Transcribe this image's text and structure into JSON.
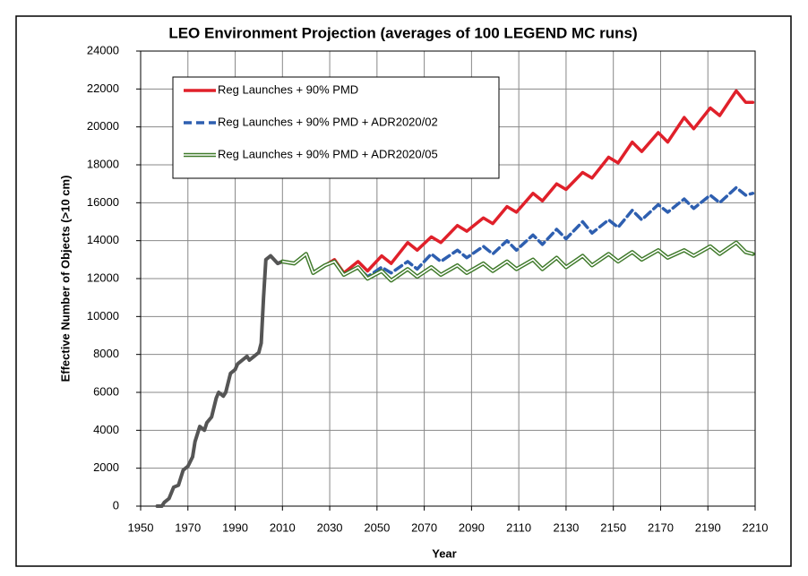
{
  "chart_data": {
    "type": "line",
    "title": "LEO Environment Projection (averages of 100 LEGEND MC runs)",
    "x_label": "Year",
    "y_label": "Effective Number of Objects (>10 cm)",
    "x": [
      1957,
      1959,
      1960,
      1962,
      1964,
      1966,
      1968,
      1970,
      1972,
      1973,
      1975,
      1977,
      1978,
      1980,
      1982,
      1983,
      1985,
      1986,
      1988,
      1990,
      1991,
      1993,
      1995,
      1996,
      1998,
      2000,
      2001,
      2002,
      2003,
      2005,
      2008,
      2010,
      2015,
      2020,
      2023,
      2028,
      2032,
      2036,
      2042,
      2046,
      2052,
      2056,
      2063,
      2067,
      2073,
      2077,
      2084,
      2088,
      2095,
      2099,
      2105,
      2109,
      2116,
      2120,
      2126,
      2130,
      2137,
      2141,
      2148,
      2152,
      2158,
      2162,
      2169,
      2173,
      2180,
      2184,
      2191,
      2195,
      2202,
      2206,
      2209
    ],
    "series": [
      {
        "color": "#555555",
        "style": "solid",
        "values": [
          0,
          0,
          200,
          400,
          1000,
          1100,
          1900,
          2100,
          2600,
          3400,
          4200,
          4000,
          4400,
          4700,
          5700,
          6000,
          5800,
          6000,
          7000,
          7200,
          7500,
          7700,
          7900,
          7700,
          7900,
          8100,
          8600,
          11000,
          13000,
          13200,
          12800,
          12900,
          12800,
          13300,
          12300,
          null,
          null,
          null,
          null,
          null,
          null,
          null,
          null,
          null,
          null,
          null,
          null,
          null,
          null,
          null,
          null,
          null,
          null,
          null,
          null,
          null,
          null,
          null,
          null,
          null,
          null,
          null,
          null,
          null,
          null,
          null,
          null,
          null,
          null,
          null,
          null
        ]
      },
      {
        "name": "Reg Launches + 90% PMD",
        "color": "#e0202a",
        "style": "solid",
        "values": [
          null,
          null,
          null,
          null,
          null,
          null,
          null,
          null,
          null,
          null,
          null,
          null,
          null,
          null,
          null,
          null,
          null,
          null,
          null,
          null,
          null,
          null,
          null,
          null,
          null,
          null,
          null,
          null,
          null,
          null,
          null,
          12900,
          12800,
          13300,
          12300,
          12700,
          13000,
          12300,
          12900,
          12400,
          13200,
          12800,
          13900,
          13500,
          14200,
          13900,
          14800,
          14500,
          15200,
          14900,
          15800,
          15500,
          16500,
          16100,
          17000,
          16700,
          17600,
          17300,
          18400,
          18100,
          19200,
          18700,
          19700,
          19200,
          20500,
          19900,
          21000,
          20600,
          21900,
          21300,
          21300
        ]
      },
      {
        "name": "Reg Launches + 90% PMD + ADR2020/02",
        "color": "#2e5fb0",
        "style": "dashed",
        "values": [
          null,
          null,
          null,
          null,
          null,
          null,
          null,
          null,
          null,
          null,
          null,
          null,
          null,
          null,
          null,
          null,
          null,
          null,
          null,
          null,
          null,
          null,
          null,
          null,
          null,
          null,
          null,
          null,
          null,
          null,
          null,
          12900,
          12800,
          13300,
          12300,
          12700,
          12900,
          12200,
          12600,
          12100,
          12600,
          12300,
          12900,
          12500,
          13300,
          12900,
          13500,
          13100,
          13700,
          13300,
          14000,
          13500,
          14300,
          13800,
          14600,
          14100,
          15000,
          14400,
          15100,
          14700,
          15600,
          15100,
          15900,
          15500,
          16200,
          15700,
          16400,
          16000,
          16800,
          16400,
          16500
        ]
      },
      {
        "name": "Reg Launches + 90% PMD + ADR2020/05",
        "color": "#3f7a2a",
        "style": "double",
        "values": [
          null,
          null,
          null,
          null,
          null,
          null,
          null,
          null,
          null,
          null,
          null,
          null,
          null,
          null,
          null,
          null,
          null,
          null,
          null,
          null,
          null,
          null,
          null,
          null,
          null,
          null,
          null,
          null,
          null,
          null,
          null,
          12900,
          12800,
          13300,
          12300,
          12700,
          12900,
          12200,
          12600,
          12000,
          12400,
          11900,
          12500,
          12100,
          12600,
          12200,
          12700,
          12300,
          12800,
          12400,
          12900,
          12500,
          13000,
          12500,
          13100,
          12600,
          13200,
          12700,
          13300,
          12900,
          13400,
          13000,
          13500,
          13100,
          13500,
          13200,
          13700,
          13300,
          13900,
          13400,
          13300
        ]
      }
    ],
    "xlim": [
      1950,
      2210
    ],
    "xticks": [
      1950,
      1970,
      1990,
      2010,
      2030,
      2050,
      2070,
      2090,
      2110,
      2130,
      2150,
      2170,
      2190,
      2210
    ],
    "ylim": [
      0,
      24000
    ],
    "yticks": [
      0,
      2000,
      4000,
      6000,
      8000,
      10000,
      12000,
      14000,
      16000,
      18000,
      20000,
      22000,
      24000
    ],
    "grid": true,
    "legend": "upper left"
  }
}
